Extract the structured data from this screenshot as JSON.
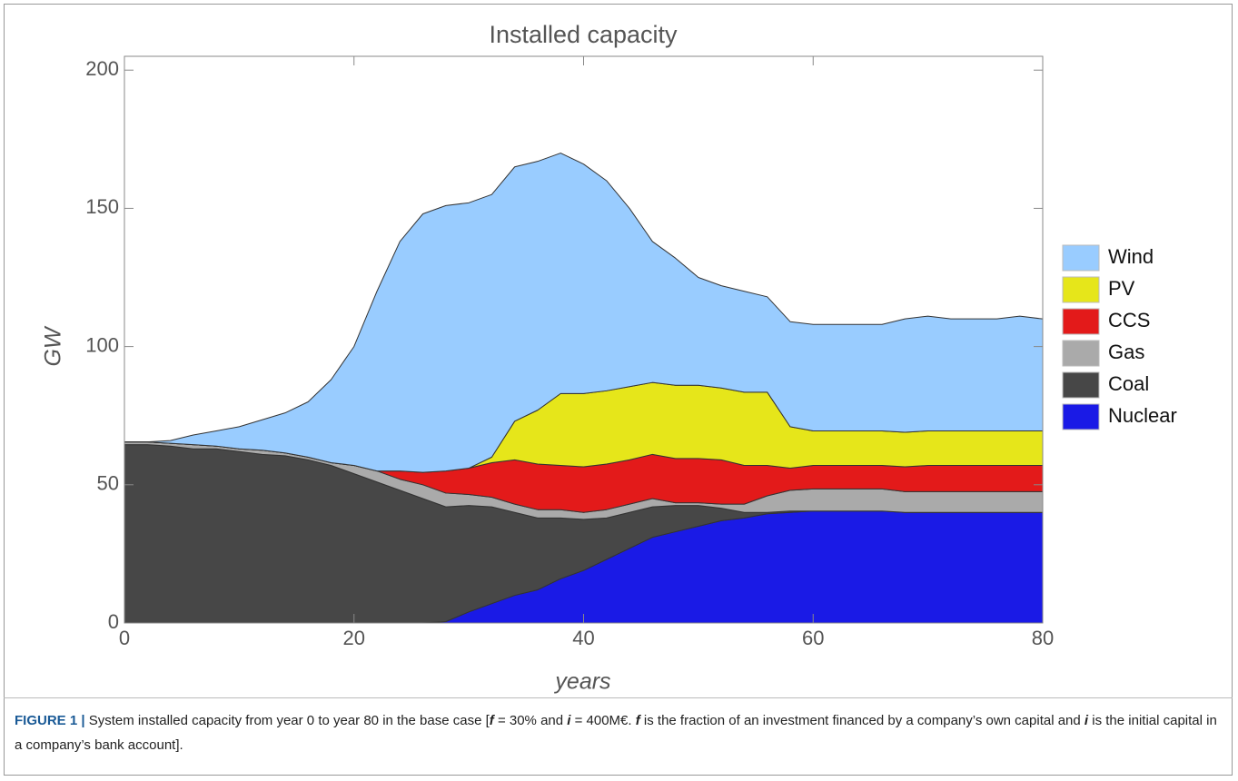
{
  "chart_data": {
    "type": "stacked_area",
    "title": "Installed capacity",
    "x_label": "years",
    "y_label": "GW",
    "x": [
      0,
      2,
      4,
      6,
      8,
      10,
      12,
      14,
      16,
      18,
      20,
      22,
      24,
      26,
      28,
      30,
      32,
      34,
      36,
      38,
      40,
      42,
      44,
      46,
      48,
      50,
      52,
      54,
      56,
      58,
      60,
      62,
      64,
      66,
      68,
      70,
      72,
      74,
      76,
      78,
      80
    ],
    "series": [
      {
        "name": "Nuclear",
        "color": "#1a1ae6",
        "values": [
          0,
          0,
          0,
          0,
          0,
          0,
          0,
          0,
          0,
          0,
          0,
          0,
          0,
          0,
          0.5,
          4,
          7,
          10,
          12,
          16,
          19,
          23,
          27,
          31,
          33,
          35,
          37,
          38,
          39.5,
          40,
          40.5,
          40.5,
          40.5,
          40.5,
          40,
          40,
          40,
          40,
          40,
          40,
          40
        ]
      },
      {
        "name": "Coal",
        "color": "#474747",
        "values": [
          64.5,
          64.5,
          64,
          63,
          63,
          62,
          61,
          60.5,
          59,
          57,
          54,
          51,
          48,
          45,
          41.5,
          38.5,
          35,
          30,
          26,
          22,
          18.5,
          15,
          13,
          11,
          9.5,
          7.5,
          4.5,
          2,
          0.5,
          0.5,
          0,
          0,
          0,
          0,
          0,
          0,
          0,
          0,
          0,
          0,
          0
        ]
      },
      {
        "name": "Gas",
        "color": "#aaaaaa",
        "values": [
          1,
          1,
          1,
          1.5,
          1,
          1,
          1.5,
          1,
          1,
          1,
          3,
          4,
          4,
          5,
          5,
          4,
          3.5,
          3,
          3,
          3,
          2.5,
          3,
          3,
          3,
          1,
          1,
          1.5,
          3,
          6,
          7.5,
          8,
          8,
          8,
          8,
          7.5,
          7.5,
          7.5,
          7.5,
          7.5,
          7.5,
          7.5
        ]
      },
      {
        "name": "CCS",
        "color": "#e31a1a",
        "values": [
          0,
          0,
          0,
          0,
          0,
          0,
          0,
          0,
          0,
          0,
          0,
          0,
          3,
          4.5,
          8,
          9.5,
          12.5,
          16,
          16.5,
          16,
          16.5,
          16.5,
          16,
          16,
          16,
          16,
          16,
          14,
          11,
          8,
          8.5,
          8.5,
          8.5,
          8.5,
          9,
          9.5,
          9.5,
          9.5,
          9.5,
          9.5,
          9.5
        ]
      },
      {
        "name": "PV",
        "color": "#e6e61a",
        "values": [
          0,
          0,
          0,
          0,
          0,
          0,
          0,
          0,
          0,
          0,
          0,
          0,
          0,
          0,
          0,
          0,
          2,
          14,
          19.5,
          26,
          26.5,
          26.5,
          26.5,
          26,
          26.5,
          26.5,
          26,
          26.5,
          26.5,
          15,
          12.5,
          12.5,
          12.5,
          12.5,
          12.5,
          12.5,
          12.5,
          12.5,
          12.5,
          12.5,
          12.5
        ]
      },
      {
        "name": "Wind",
        "color": "#99ccff",
        "values": [
          0,
          0,
          1,
          3.5,
          5.5,
          8,
          11,
          14.5,
          20,
          30,
          43,
          65,
          83,
          93.5,
          96,
          96,
          95,
          92,
          90,
          87,
          83,
          76,
          64.5,
          51,
          46,
          39,
          37,
          36.5,
          34.5,
          38,
          38.5,
          38.5,
          38.5,
          38.5,
          41,
          41.5,
          40.5,
          40.5,
          40.5,
          41.5,
          40.5
        ]
      }
    ],
    "xlim": [
      0,
      80
    ],
    "ylim": [
      0,
      205
    ],
    "xticks": [
      0,
      20,
      40,
      60,
      80
    ],
    "yticks": [
      0,
      50,
      100,
      150,
      200
    ],
    "legend": "right"
  },
  "caption": {
    "label": "FIGURE 1 |",
    "parts": [
      "System installed capacity from year 0 to year 80 in the base case [",
      "f",
      " = 30% and ",
      "i",
      " = 400M€. ",
      "f",
      " is the fraction of an investment financed by a company’s own capital and ",
      "i",
      " is the initial capital in a company’s bank account]."
    ]
  }
}
